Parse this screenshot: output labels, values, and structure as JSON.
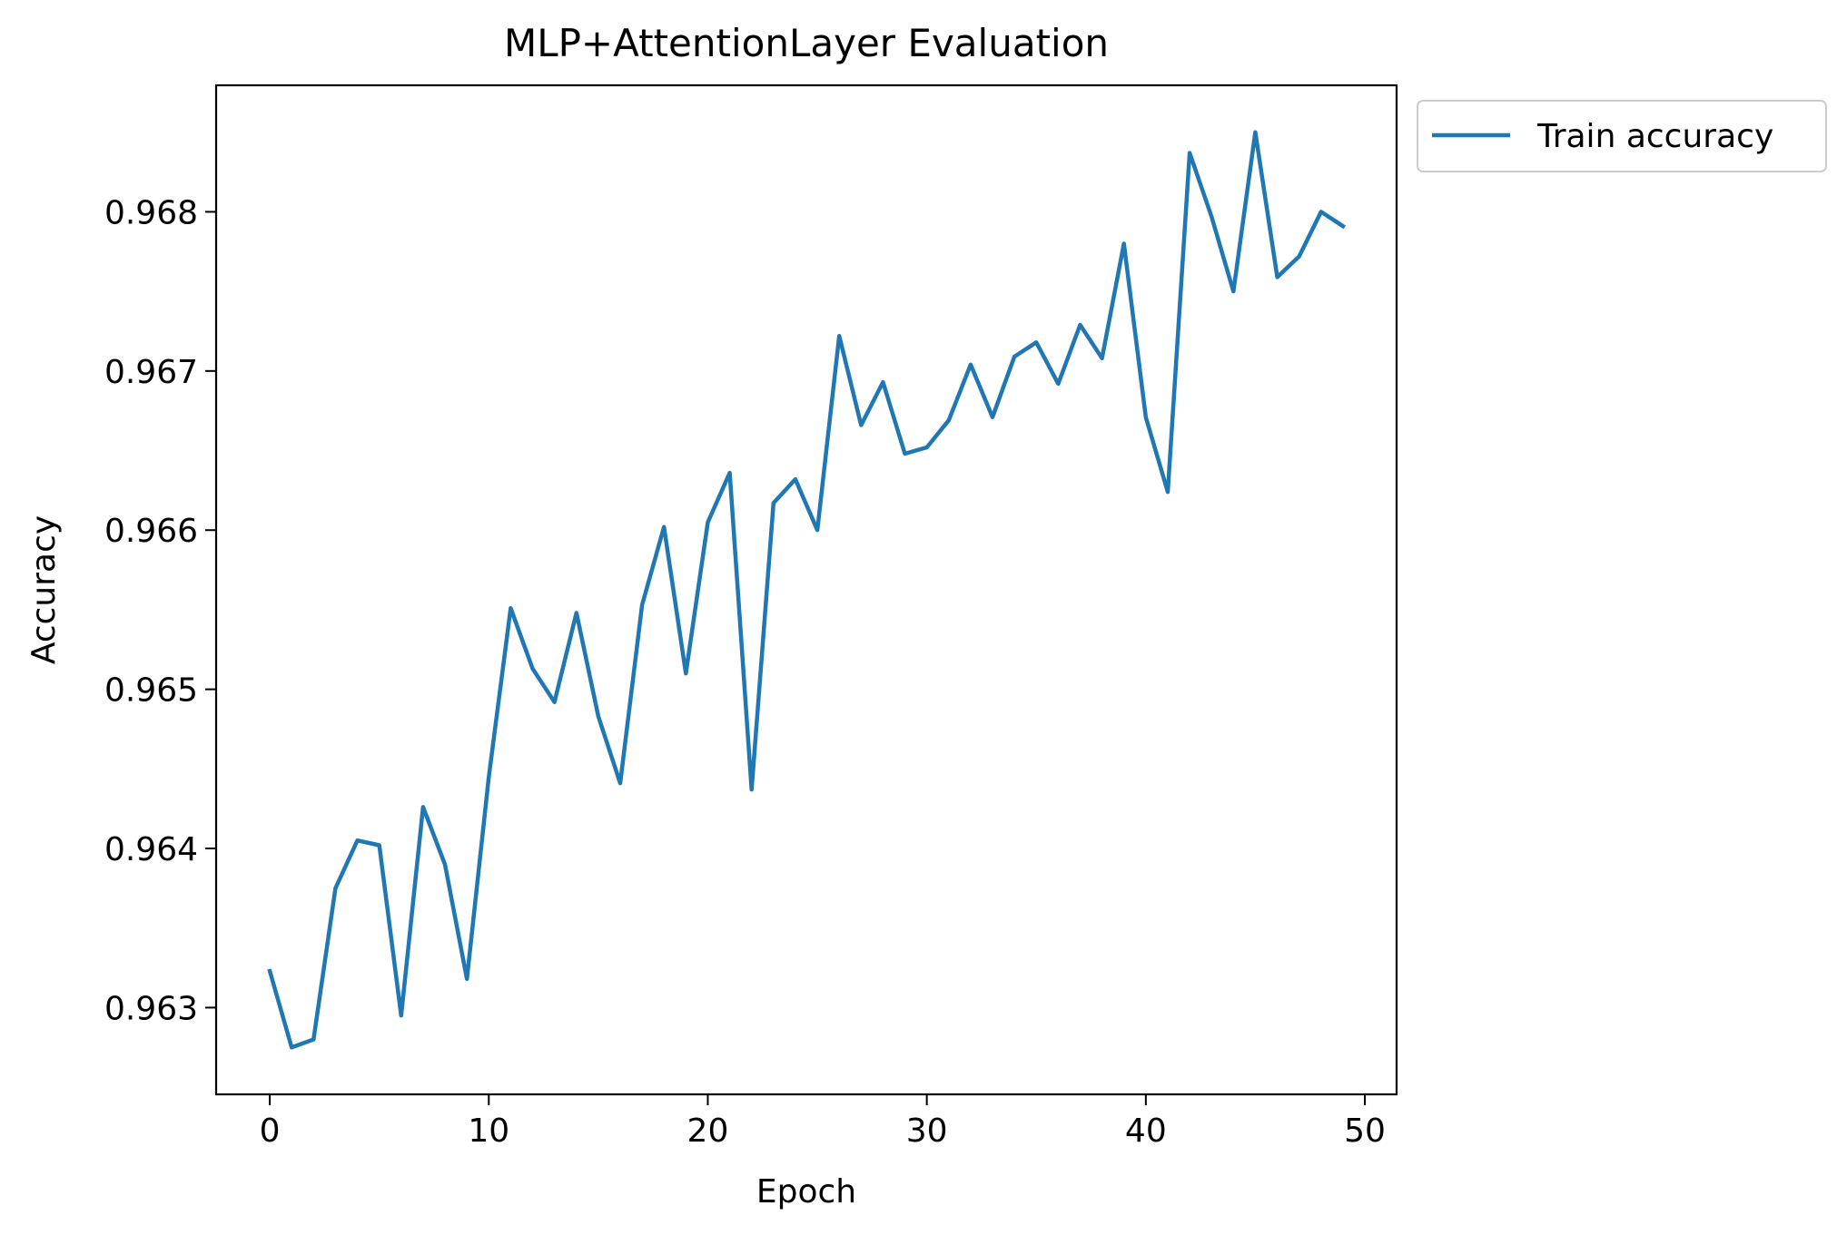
{
  "chart_data": {
    "type": "line",
    "title": "MLP+AttentionLayer Evaluation",
    "xlabel": "Epoch",
    "ylabel": "Accuracy",
    "xlim": [
      -2.45,
      51.45
    ],
    "ylim": [
      0.962455,
      0.968795
    ],
    "xticks": [
      0,
      10,
      20,
      30,
      40,
      50
    ],
    "yticks": [
      0.963,
      0.964,
      0.965,
      0.966,
      0.967,
      0.968
    ],
    "ytick_labels": [
      "0.963",
      "0.964",
      "0.965",
      "0.966",
      "0.967",
      "0.968"
    ],
    "grid": false,
    "legend_position": "outside-upper-right",
    "series": [
      {
        "name": "Train accuracy",
        "color": "#1f77b4",
        "x": [
          0,
          1,
          2,
          3,
          4,
          5,
          6,
          7,
          8,
          9,
          10,
          11,
          12,
          13,
          14,
          15,
          16,
          17,
          18,
          19,
          20,
          21,
          22,
          23,
          24,
          25,
          26,
          27,
          28,
          29,
          30,
          31,
          32,
          33,
          34,
          35,
          36,
          37,
          38,
          39,
          40,
          41,
          42,
          43,
          44,
          45,
          46,
          47,
          48,
          49
        ],
        "y": [
          0.96323,
          0.96275,
          0.9628,
          0.96375,
          0.96405,
          0.96402,
          0.96295,
          0.96426,
          0.9639,
          0.96318,
          0.96445,
          0.96551,
          0.96513,
          0.96492,
          0.96548,
          0.96483,
          0.96441,
          0.96553,
          0.96602,
          0.9651,
          0.96605,
          0.96636,
          0.96437,
          0.96617,
          0.96632,
          0.966,
          0.96722,
          0.96666,
          0.96693,
          0.96648,
          0.96652,
          0.96669,
          0.96704,
          0.96671,
          0.96709,
          0.96718,
          0.96692,
          0.96729,
          0.96708,
          0.9678,
          0.96671,
          0.96624,
          0.96837,
          0.96797,
          0.9675,
          0.9685,
          0.96759,
          0.96772,
          0.968,
          0.96791
        ]
      }
    ]
  }
}
